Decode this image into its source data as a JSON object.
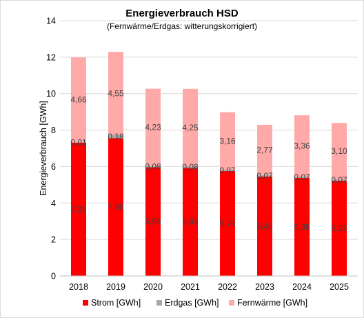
{
  "chart_data": {
    "type": "bar",
    "stacked": true,
    "title": "Energieverbrauch HSD",
    "subtitle": "(Fernwärme/Erdgas: witterungskorrigiert)",
    "xlabel": "",
    "ylabel": "Energieverbrauch [GWh]",
    "ylim": [
      0,
      14
    ],
    "yticks": [
      0,
      2,
      4,
      6,
      8,
      10,
      12,
      14
    ],
    "categories": [
      "2018",
      "2019",
      "2020",
      "2021",
      "2022",
      "2023",
      "2024",
      "2025"
    ],
    "series": [
      {
        "name": "Strom [GWh]",
        "color": "#ff0000",
        "values": [
          7.32,
          7.56,
          5.96,
          5.93,
          5.75,
          5.45,
          5.38,
          5.22
        ],
        "labels": [
          "7,32",
          "7,56",
          "5,96",
          "5,93",
          "5,75",
          "5,45",
          "5,38",
          "5,22"
        ]
      },
      {
        "name": "Erdgas [GWh]",
        "color": "#a6a6a6",
        "values": [
          0.01,
          0.18,
          0.08,
          0.08,
          0.07,
          0.07,
          0.07,
          0.07
        ],
        "labels": [
          "0,01",
          "0,18",
          "0,08",
          "0,08",
          "0,07",
          "0,07",
          "0,07",
          "0,07"
        ]
      },
      {
        "name": "Fernwärme [GWh]",
        "color": "#ffa9a9",
        "values": [
          4.66,
          4.55,
          4.23,
          4.25,
          3.16,
          2.77,
          3.36,
          3.1
        ],
        "labels": [
          "4,66",
          "4,55",
          "4,23",
          "4,25",
          "3,16",
          "2,77",
          "3,36",
          "3,10"
        ]
      }
    ],
    "grid": true,
    "legend_position": "bottom"
  }
}
